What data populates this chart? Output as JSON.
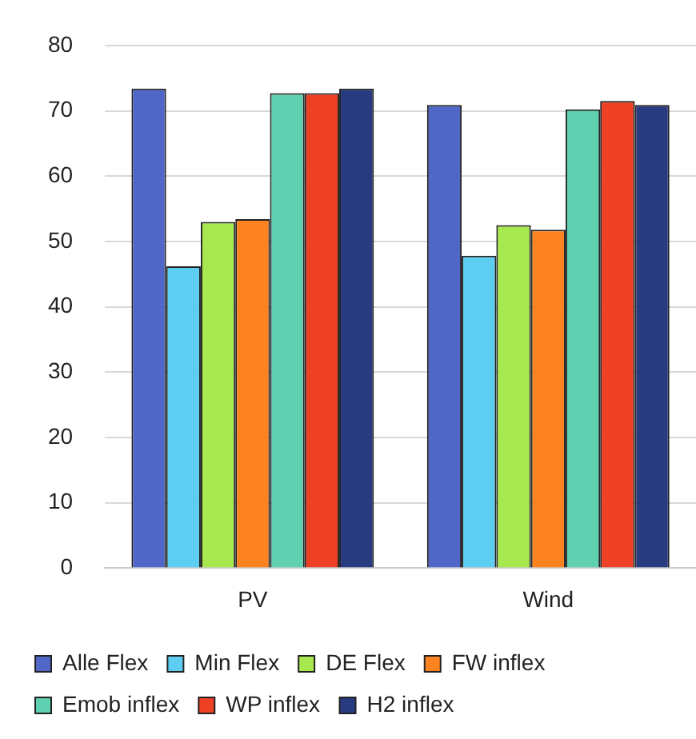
{
  "chart_data": {
    "type": "bar",
    "categories": [
      "PV",
      "Wind"
    ],
    "series": [
      {
        "name": "Alle Flex",
        "color": "#5067c8",
        "values": [
          73.4,
          70.9
        ]
      },
      {
        "name": "Min Flex",
        "color": "#5ecdf2",
        "values": [
          46.2,
          47.8
        ]
      },
      {
        "name": "DE Flex",
        "color": "#a6e84e",
        "values": [
          53.0,
          52.5
        ]
      },
      {
        "name": "FW inflex",
        "color": "#fc831f",
        "values": [
          53.4,
          51.8
        ]
      },
      {
        "name": "Emob inflex",
        "color": "#5fd0b0",
        "values": [
          72.7,
          70.2
        ]
      },
      {
        "name": "WP inflex",
        "color": "#ee4025",
        "values": [
          72.7,
          71.5
        ]
      },
      {
        "name": "H2 inflex",
        "color": "#283a80",
        "values": [
          73.4,
          70.9
        ]
      }
    ],
    "ylim": [
      0,
      80
    ],
    "yticks": [
      0,
      10,
      20,
      30,
      40,
      50,
      60,
      70,
      80
    ],
    "grid": "y",
    "legend": "bottom"
  }
}
